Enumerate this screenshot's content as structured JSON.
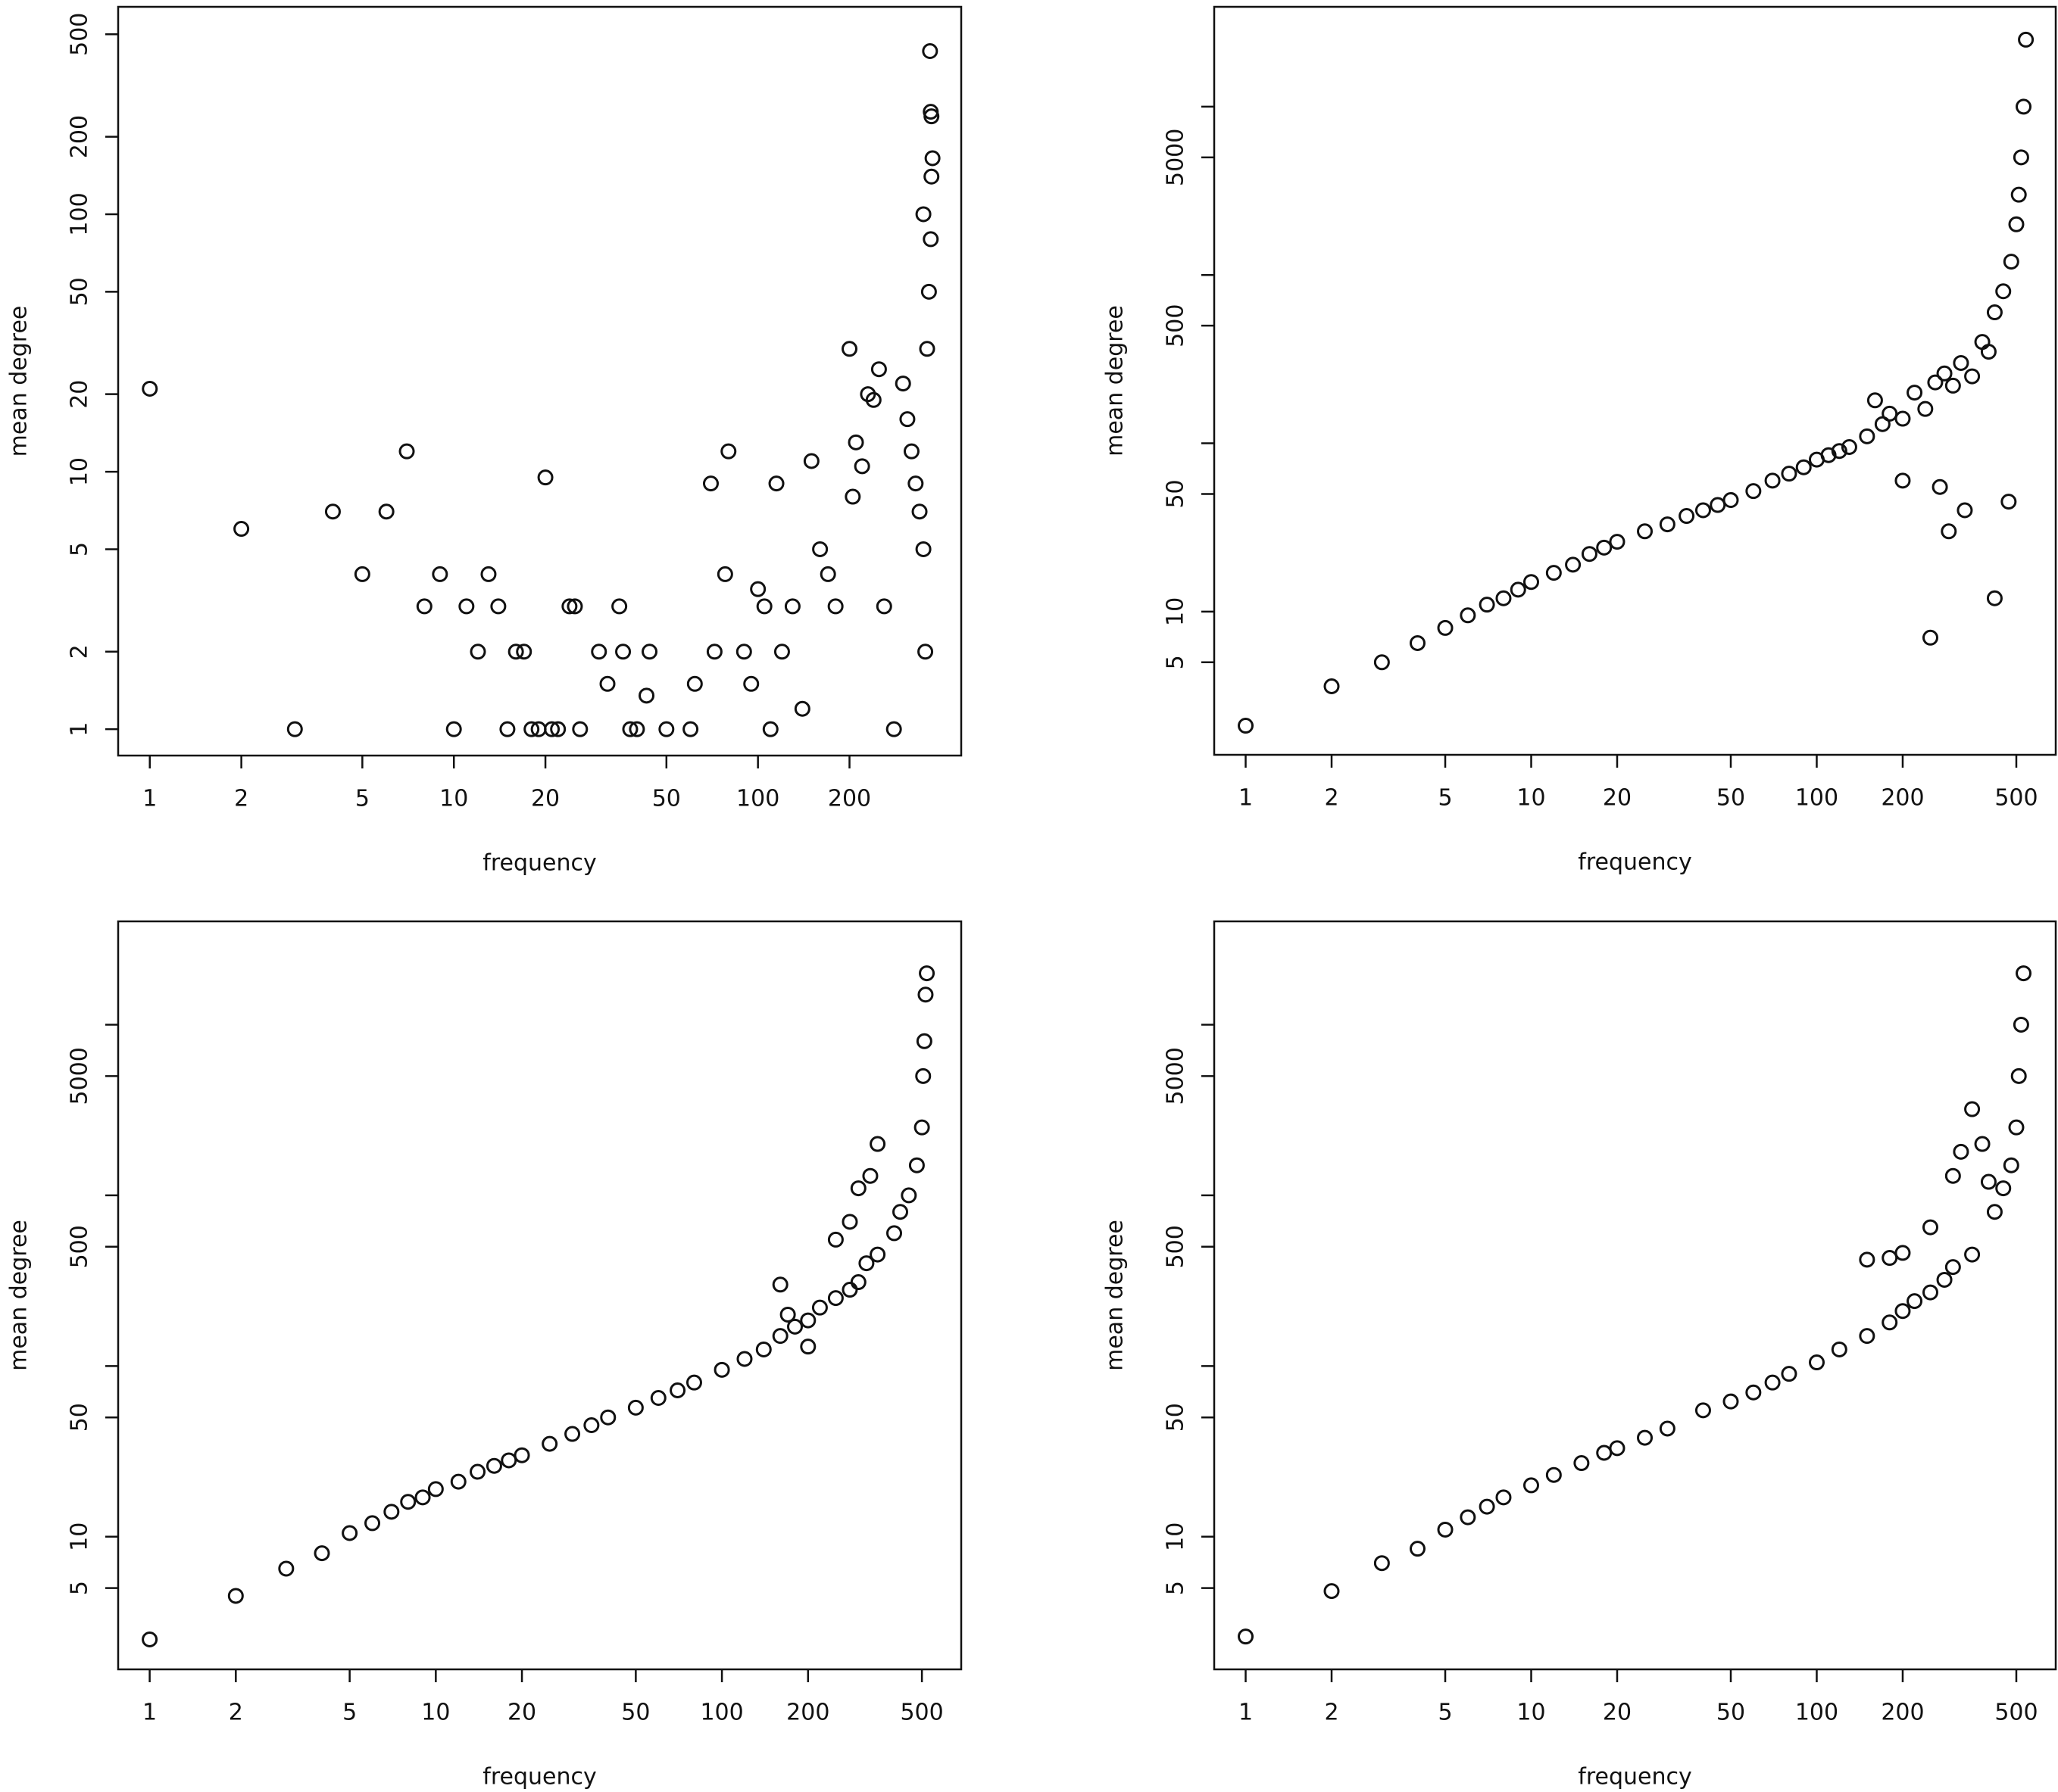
{
  "chart_data": [
    {
      "type": "scatter",
      "xlabel": "frequency",
      "ylabel": "mean degree",
      "log_x": true,
      "log_y": true,
      "xlim": [
        0.787,
        466
      ],
      "ylim": [
        0.79,
        639
      ],
      "xticks": [
        1,
        2,
        5,
        10,
        20,
        50,
        100,
        200
      ],
      "yticks": [
        1,
        2,
        5,
        10,
        20,
        50,
        100,
        200,
        500
      ],
      "x": [
        1,
        2,
        3,
        4,
        5,
        6,
        7,
        8,
        9,
        10,
        11,
        12,
        13,
        14,
        15,
        16,
        17,
        18,
        19,
        20,
        21,
        22,
        24,
        25,
        26,
        30,
        32,
        35,
        36,
        38,
        40,
        43,
        44,
        50,
        60,
        62,
        70,
        72,
        78,
        80,
        90,
        95,
        100,
        105,
        110,
        115,
        120,
        130,
        140,
        150,
        160,
        170,
        180,
        200,
        205,
        210,
        220,
        230,
        240,
        250,
        260,
        280,
        300,
        310,
        320,
        330,
        340,
        350,
        355,
        360,
        365,
        370,
        372,
        375,
        370,
        372,
        368,
        350
      ],
      "values": [
        21,
        6,
        1,
        7,
        4,
        7,
        12,
        3,
        4,
        1,
        3,
        2,
        4,
        3,
        1,
        2,
        2,
        1,
        1,
        9.5,
        1,
        1,
        3,
        3,
        1,
        2,
        1.5,
        3,
        2,
        1,
        1,
        1.35,
        2,
        1,
        1,
        1.5,
        9,
        2,
        4,
        12,
        2,
        1.5,
        3.5,
        3,
        1,
        9,
        2,
        3,
        1.2,
        11,
        5,
        4,
        3,
        30,
        8,
        13,
        10.5,
        20,
        19,
        25,
        3,
        1,
        22,
        16,
        12,
        9,
        7,
        5,
        2,
        30,
        50,
        80,
        140,
        165,
        250,
        240,
        430,
        100
      ]
    },
    {
      "type": "scatter",
      "xlabel": "frequency",
      "ylabel": "mean degree",
      "log_x": true,
      "log_y": true,
      "xlim": [
        0.776,
        687
      ],
      "ylim": [
        1.41,
        39200
      ],
      "xticks": [
        1,
        2,
        5,
        10,
        20,
        50,
        100,
        200,
        500
      ],
      "yticks": [
        5,
        10,
        50,
        500,
        5000
      ],
      "yminorticks": [
        100,
        1000,
        10000
      ],
      "x": [
        1,
        2,
        3,
        4,
        5,
        6,
        7,
        8,
        9,
        10,
        12,
        14,
        16,
        18,
        20,
        25,
        30,
        35,
        40,
        45,
        50,
        60,
        70,
        80,
        90,
        100,
        110,
        120,
        130,
        150,
        160,
        170,
        180,
        200,
        220,
        240,
        260,
        280,
        300,
        320,
        350,
        380,
        400,
        420,
        450,
        480,
        500,
        510,
        520,
        530,
        540,
        250,
        270,
        290,
        330,
        420,
        470,
        200
      ],
      "values": [
        2.1,
        3.6,
        5,
        6.5,
        8,
        9.5,
        11,
        12,
        13.5,
        15,
        17,
        19,
        22,
        24,
        26,
        30,
        33,
        37,
        40,
        43,
        46,
        52,
        60,
        66,
        72,
        80,
        85,
        90,
        95,
        110,
        180,
        130,
        150,
        140,
        200,
        160,
        230,
        260,
        220,
        300,
        250,
        400,
        350,
        600,
        800,
        1200,
        2000,
        3000,
        5000,
        10000,
        25000,
        7,
        55,
        30,
        40,
        12,
        45,
        60
      ]
    },
    {
      "type": "scatter",
      "xlabel": "frequency",
      "ylabel": "mean degree",
      "log_x": true,
      "log_y": true,
      "xlim": [
        0.776,
        686
      ],
      "ylim": [
        1.67,
        40300
      ],
      "xticks": [
        1,
        2,
        5,
        10,
        20,
        50,
        100,
        200,
        500
      ],
      "yticks": [
        5,
        10,
        50,
        500,
        5000
      ],
      "yminorticks": [
        100,
        1000,
        10000
      ],
      "x": [
        1,
        2,
        3,
        4,
        5,
        6,
        7,
        8,
        9,
        10,
        12,
        14,
        16,
        18,
        20,
        25,
        30,
        35,
        40,
        50,
        60,
        70,
        80,
        100,
        120,
        140,
        160,
        180,
        200,
        160,
        220,
        250,
        280,
        300,
        320,
        350,
        300,
        330,
        400,
        420,
        450,
        480,
        500,
        505,
        510,
        515,
        520,
        250,
        280,
        200,
        170,
        350
      ],
      "values": [
        2.5,
        4.5,
        6.5,
        8,
        10.5,
        12,
        14,
        16,
        17,
        19,
        21,
        24,
        26,
        28,
        30,
        35,
        40,
        45,
        50,
        57,
        65,
        72,
        80,
        95,
        110,
        125,
        150,
        170,
        185,
        300,
        220,
        250,
        280,
        310,
        400,
        450,
        1100,
        1300,
        600,
        800,
        1000,
        1500,
        2500,
        5000,
        8000,
        15000,
        20000,
        550,
        700,
        130,
        200,
        2000
      ]
    },
    {
      "type": "scatter",
      "xlabel": "frequency",
      "ylabel": "mean degree",
      "log_x": true,
      "log_y": true,
      "xlim": [
        0.776,
        687
      ],
      "ylim": [
        1.67,
        40300
      ],
      "xticks": [
        1,
        2,
        5,
        10,
        20,
        50,
        100,
        200,
        500
      ],
      "yticks": [
        5,
        10,
        50,
        500,
        5000
      ],
      "yminorticks": [
        100,
        1000,
        10000
      ],
      "x": [
        1,
        2,
        3,
        4,
        5,
        6,
        7,
        8,
        10,
        12,
        15,
        18,
        20,
        25,
        30,
        40,
        50,
        60,
        70,
        80,
        100,
        120,
        150,
        180,
        200,
        220,
        250,
        280,
        300,
        350,
        300,
        320,
        350,
        380,
        400,
        420,
        450,
        480,
        500,
        510,
        520,
        530,
        180,
        200,
        250,
        150
      ],
      "values": [
        2.6,
        4.8,
        7,
        8.5,
        11,
        13,
        15,
        17,
        20,
        23,
        27,
        31,
        33,
        38,
        43,
        55,
        62,
        70,
        80,
        90,
        105,
        125,
        150,
        180,
        210,
        240,
        270,
        320,
        380,
        450,
        1300,
        1800,
        3200,
        2000,
        1200,
        800,
        1100,
        1500,
        2500,
        5000,
        10000,
        20000,
        430,
        460,
        650,
        420
      ]
    }
  ]
}
